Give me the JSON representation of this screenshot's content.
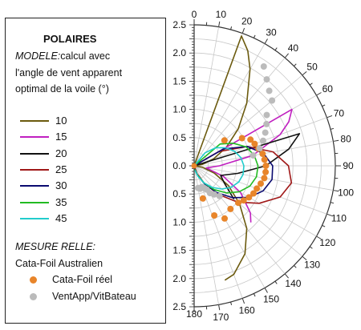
{
  "legend": {
    "title": "POLAIRES",
    "model_prefix": "MODELE:",
    "model_line1_rest": "calcul avec",
    "model_line2": "l'angle de vent apparent",
    "model_line3": "optimal de la voile (°)",
    "measure_title": "MESURE RELLE:",
    "measure_subtitle": "Cata-Foil Australien"
  },
  "chart_data": {
    "type": "scatter",
    "projection": "polar",
    "angle_unit": "degrees",
    "angle_ticks": [
      0,
      10,
      20,
      30,
      40,
      50,
      60,
      70,
      80,
      90,
      100,
      110,
      120,
      130,
      140,
      150,
      160,
      170,
      180
    ],
    "radial_ticks": [
      "0.0",
      "0.5",
      "1.0",
      "1.5",
      "2.0",
      "2.5"
    ],
    "rmax": 2.5,
    "grid": true,
    "legend_position": "left",
    "series": [
      {
        "name": "10",
        "kind": "line",
        "color": "#6b5a0e",
        "points": [
          [
            20,
            2.45
          ],
          [
            25,
            2.25
          ],
          [
            30,
            1.98
          ],
          [
            40,
            1.45
          ],
          [
            50,
            1.02
          ],
          [
            60,
            0.66
          ],
          [
            70,
            0.37
          ],
          [
            80,
            0.15
          ],
          [
            90,
            0.0
          ],
          [
            100,
            0.15
          ],
          [
            110,
            0.38
          ],
          [
            120,
            0.7
          ],
          [
            130,
            1.05
          ],
          [
            140,
            1.45
          ],
          [
            150,
            1.8
          ],
          [
            160,
            2.05
          ],
          [
            165,
            2.1
          ]
        ]
      },
      {
        "name": "15",
        "kind": "line",
        "color": "#c020c0",
        "points": [
          [
            60,
            2.0
          ],
          [
            65,
            1.85
          ],
          [
            70,
            1.62
          ],
          [
            80,
            1.05
          ],
          [
            90,
            0.45
          ],
          [
            100,
            0.22
          ],
          [
            110,
            0.55
          ],
          [
            120,
            0.95
          ],
          [
            130,
            1.3
          ],
          [
            135,
            1.42
          ]
        ]
      },
      {
        "name": "20",
        "kind": "line",
        "color": "#111111",
        "points": [
          [
            73,
            1.95
          ],
          [
            80,
            1.7
          ],
          [
            90,
            1.27
          ],
          [
            100,
            0.78
          ],
          [
            110,
            0.5
          ],
          [
            120,
            0.62
          ],
          [
            130,
            0.92
          ]
        ]
      },
      {
        "name": "25",
        "kind": "line",
        "color": "#a01818",
        "points": [
          [
            60,
            0.5
          ],
          [
            70,
            1.0
          ],
          [
            80,
            1.42
          ],
          [
            90,
            1.67
          ],
          [
            100,
            1.75
          ],
          [
            110,
            1.62
          ],
          [
            120,
            1.33
          ],
          [
            130,
            1.0
          ],
          [
            140,
            0.66
          ],
          [
            150,
            0.35
          ],
          [
            160,
            0.15
          ],
          [
            170,
            0.0
          ]
        ]
      },
      {
        "name": "30",
        "kind": "line",
        "color": "#0a0a70",
        "points": [
          [
            60,
            0.6
          ],
          [
            70,
            1.0
          ],
          [
            80,
            1.25
          ],
          [
            90,
            1.39
          ],
          [
            100,
            1.4
          ],
          [
            110,
            1.3
          ],
          [
            120,
            1.12
          ],
          [
            130,
            0.88
          ],
          [
            140,
            0.62
          ],
          [
            150,
            0.37
          ],
          [
            160,
            0.18
          ],
          [
            170,
            0.05
          ]
        ]
      },
      {
        "name": "35",
        "kind": "line",
        "color": "#22bb22",
        "points": [
          [
            50,
            0.6
          ],
          [
            60,
            0.8
          ],
          [
            70,
            0.98
          ],
          [
            80,
            1.08
          ],
          [
            90,
            1.13
          ],
          [
            100,
            1.12
          ],
          [
            110,
            1.05
          ],
          [
            120,
            0.92
          ],
          [
            130,
            0.75
          ],
          [
            140,
            0.55
          ],
          [
            150,
            0.35
          ],
          [
            160,
            0.18
          ],
          [
            170,
            0.06
          ]
        ]
      },
      {
        "name": "45",
        "kind": "line",
        "color": "#22cccc",
        "points": [
          [
            40,
            0.3
          ],
          [
            50,
            0.5
          ],
          [
            60,
            0.64
          ],
          [
            70,
            0.76
          ],
          [
            80,
            0.84
          ],
          [
            90,
            0.88
          ],
          [
            100,
            0.88
          ],
          [
            110,
            0.84
          ],
          [
            120,
            0.76
          ],
          [
            130,
            0.64
          ],
          [
            140,
            0.5
          ],
          [
            150,
            0.35
          ],
          [
            160,
            0.2
          ],
          [
            170,
            0.08
          ]
        ]
      },
      {
        "name": "Cata-Foil réel",
        "kind": "points",
        "color": "#e8852a",
        "points": [
          [
            50,
            0.7
          ],
          [
            60,
            0.98
          ],
          [
            65,
            1.1
          ],
          [
            70,
            1.14
          ],
          [
            75,
            1.18
          ],
          [
            80,
            1.23
          ],
          [
            85,
            1.25
          ],
          [
            90,
            1.27
          ],
          [
            95,
            1.27
          ],
          [
            100,
            1.26
          ],
          [
            105,
            1.22
          ],
          [
            110,
            1.18
          ],
          [
            115,
            1.16
          ],
          [
            120,
            1.12
          ],
          [
            125,
            1.07
          ],
          [
            130,
            1.02
          ],
          [
            140,
            1.0
          ],
          [
            150,
            1.08
          ],
          [
            158,
            0.95
          ],
          [
            165,
            0.6
          ]
        ]
      },
      {
        "name": "VentApp/VitBateau",
        "kind": "points",
        "color": "#bbbbbb",
        "points": [
          [
            35,
            2.15
          ],
          [
            40,
            2.0
          ],
          [
            45,
            1.88
          ],
          [
            50,
            1.8
          ],
          [
            55,
            1.57
          ],
          [
            60,
            1.48
          ],
          [
            65,
            1.39
          ],
          [
            70,
            1.3
          ],
          [
            75,
            1.2
          ],
          [
            80,
            1.06
          ],
          [
            140,
            0.7
          ],
          [
            145,
            0.62
          ],
          [
            150,
            0.56
          ],
          [
            152,
            0.48
          ],
          [
            155,
            0.44
          ],
          [
            160,
            0.4
          ],
          [
            165,
            0.42
          ],
          [
            170,
            0.4
          ]
        ]
      }
    ]
  }
}
